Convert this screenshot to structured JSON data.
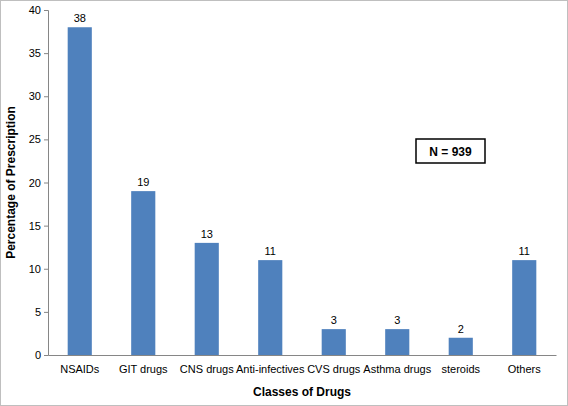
{
  "chart_data": {
    "type": "bar",
    "categories": [
      "NSAIDs",
      "GIT drugs",
      "CNS drugs",
      "Anti-infectives",
      "CVS drugs",
      "Asthma drugs",
      "steroids",
      "Others"
    ],
    "values": [
      38,
      19,
      13,
      11,
      3,
      3,
      2,
      11
    ],
    "color": "#4f81bd",
    "x_label": "Classes of Drugs",
    "y_label": "Percentage of Prescription",
    "annotation": "N = 939",
    "ylim": [
      0,
      40
    ],
    "yticks": [
      0,
      5,
      10,
      15,
      20,
      25,
      30,
      35,
      40
    ],
    "grid": false,
    "data_labels": true
  }
}
